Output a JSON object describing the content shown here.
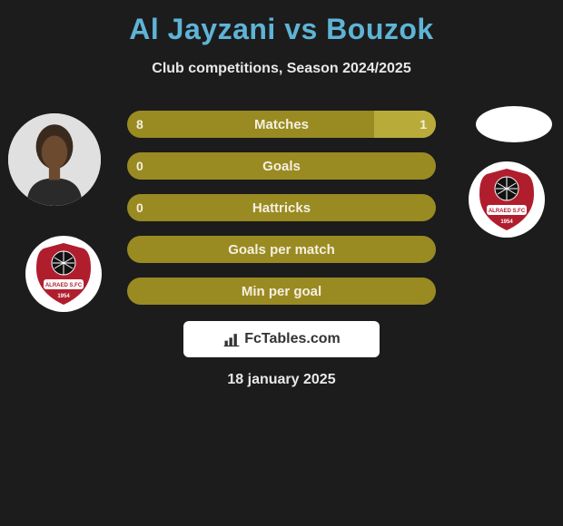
{
  "title": "Al Jayzani vs Bouzok",
  "subtitle": "Club competitions, Season 2024/2025",
  "date": "18 january 2025",
  "colors": {
    "background": "#1c1c1c",
    "title": "#5eb4d6",
    "text": "#e8e8e8",
    "bar_base": "#9a8a22",
    "bar_alt": "#b9ab3a",
    "logo_bg": "#ffffff",
    "badge_bg": "#ffffff",
    "badge_red": "#b01e2e",
    "badge_black": "#111111"
  },
  "bars": [
    {
      "label": "Matches",
      "left": "8",
      "right": "1",
      "left_pct": 80,
      "right_pct": 20
    },
    {
      "label": "Goals",
      "left": "0",
      "right": "",
      "left_pct": 100,
      "right_pct": 0
    },
    {
      "label": "Hattricks",
      "left": "0",
      "right": "",
      "left_pct": 100,
      "right_pct": 0
    },
    {
      "label": "Goals per match",
      "left": "",
      "right": "",
      "left_pct": 100,
      "right_pct": 0
    },
    {
      "label": "Min per goal",
      "left": "",
      "right": "",
      "left_pct": 100,
      "right_pct": 0
    }
  ],
  "logo": {
    "text": "FcTables.com"
  }
}
